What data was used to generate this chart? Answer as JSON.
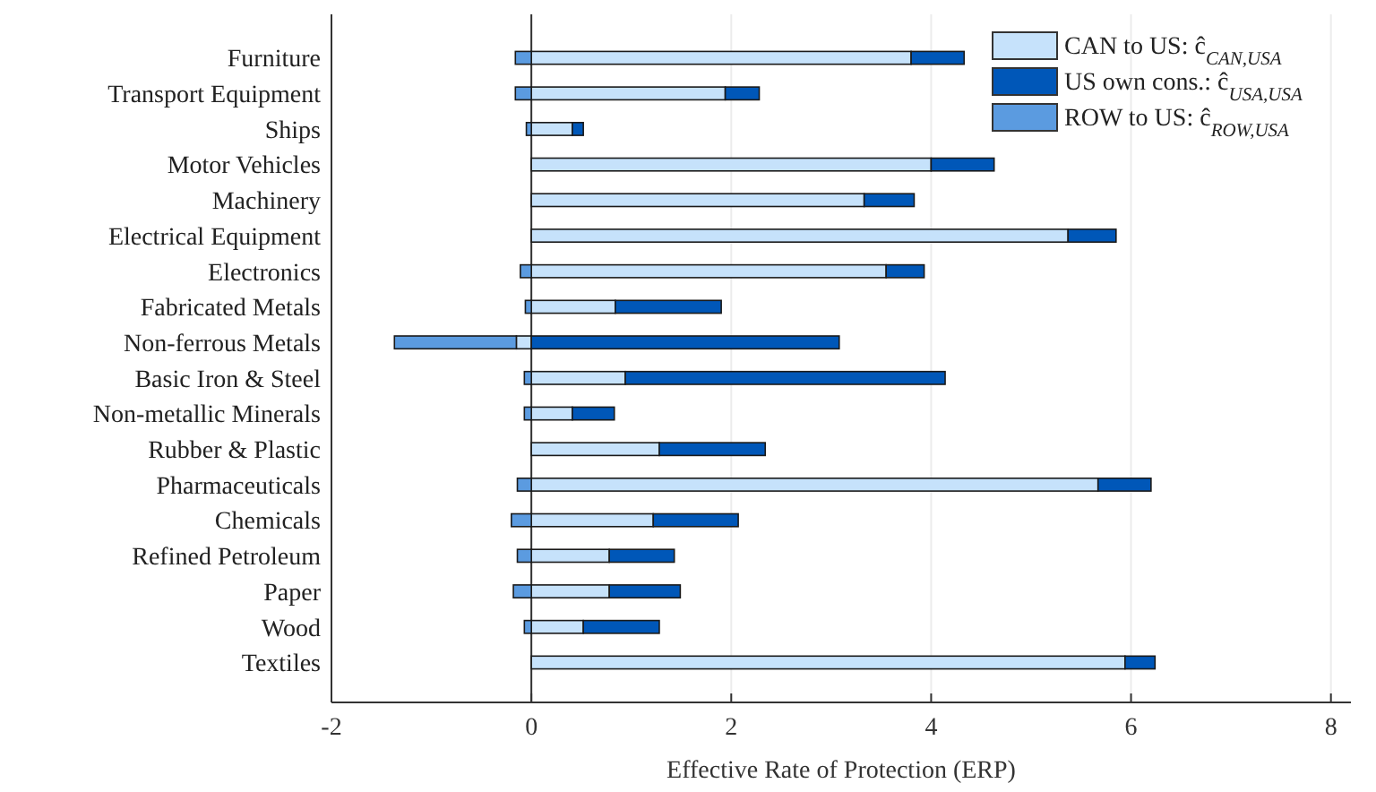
{
  "chart_data": {
    "type": "bar",
    "orientation": "horizontal",
    "stacked": true,
    "xlabel": "Effective Rate of Protection (ERP)",
    "categories": [
      "Furniture",
      "Transport Equipment",
      "Ships",
      "Motor Vehicles",
      "Machinery",
      "Electrical Equipment",
      "Electronics",
      "Fabricated Metals",
      "Non-ferrous Metals",
      "Basic Iron & Steel",
      "Non-metallic Minerals",
      "Rubber & Plastic",
      "Pharmaceuticals",
      "Chemicals",
      "Refined Petroleum",
      "Paper",
      "Wood",
      "Textiles"
    ],
    "series": [
      {
        "name": "CAN to US: ĉ$_{CAN,USA}$",
        "color": "#c6e2fb",
        "values": [
          3.8,
          1.94,
          0.41,
          4.0,
          3.33,
          5.37,
          3.55,
          0.84,
          -0.15,
          0.94,
          0.41,
          1.28,
          5.67,
          1.22,
          0.78,
          0.78,
          0.52,
          5.94
        ]
      },
      {
        "name": "US own cons.: ĉ$_{USA,USA}$",
        "color": "#0057b8",
        "values": [
          0.53,
          0.34,
          0.11,
          0.63,
          0.5,
          0.48,
          0.38,
          1.06,
          3.08,
          3.2,
          0.42,
          1.06,
          0.53,
          0.85,
          0.65,
          0.71,
          0.76,
          0.3
        ]
      },
      {
        "name": "ROW to US: ĉ$_{ROW,USA}$",
        "color": "#5b9be0",
        "values": [
          -0.16,
          -0.16,
          -0.05,
          0,
          null,
          0,
          -0.11,
          -0.06,
          -1.22,
          -0.07,
          -0.07,
          0,
          -0.14,
          -0.2,
          -0.14,
          -0.18,
          -0.07,
          0
        ]
      }
    ],
    "xlim": [
      -2,
      8.2
    ],
    "xticks": [
      -2,
      0,
      2,
      4,
      6,
      8
    ],
    "grid": "x",
    "legend": "top right",
    "ref_lines": [
      {
        "axis": "x",
        "value": 0
      }
    ]
  }
}
